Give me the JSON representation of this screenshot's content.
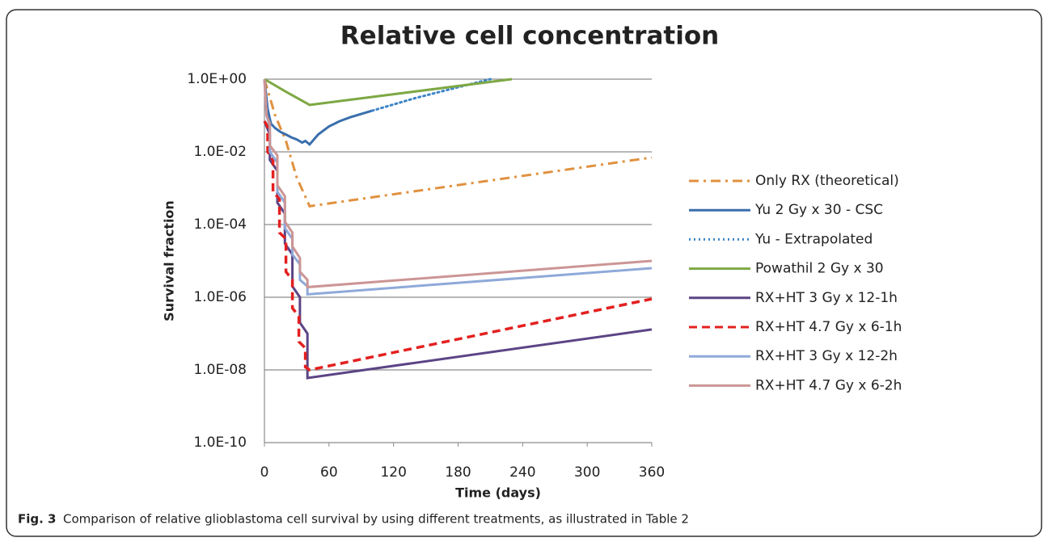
{
  "chart_data": {
    "type": "line",
    "title": "Relative cell concentration",
    "xlabel": "Time (days)",
    "ylabel": "Survival fraction",
    "yscale": "log",
    "grid": true,
    "legend": "right",
    "xlim": [
      0,
      360
    ],
    "xticks": [
      0,
      60,
      120,
      180,
      240,
      300,
      360
    ],
    "ylim": [
      1e-10,
      1
    ],
    "yticks": [
      {
        "value": 1e-10,
        "label": "1.0E-10"
      },
      {
        "value": 1e-08,
        "label": "1.0E-08"
      },
      {
        "value": 1e-06,
        "label": "1.0E-06"
      },
      {
        "value": 0.0001,
        "label": "1.0E-04"
      },
      {
        "value": 0.01,
        "label": "1.0E-02"
      },
      {
        "value": 1,
        "label": "1.0E+00"
      }
    ],
    "series": [
      {
        "name": "Only RX (theoretical)",
        "color": "#e0913f",
        "style": "dashdot",
        "x": [
          0,
          10,
          20,
          30,
          42,
          360
        ],
        "values": [
          1,
          0.1,
          0.02,
          0.002,
          0.00032,
          0.007
        ]
      },
      {
        "name": "Yu 2 Gy x 30 - CSC",
        "color": "#3a6fad",
        "style": "solid",
        "x": [
          0,
          3,
          6,
          10,
          15,
          20,
          25,
          30,
          35,
          38,
          42,
          50,
          60,
          70,
          80,
          90,
          100
        ],
        "values": [
          1,
          0.15,
          0.06,
          0.045,
          0.035,
          0.03,
          0.025,
          0.022,
          0.018,
          0.02,
          0.016,
          0.03,
          0.05,
          0.07,
          0.09,
          0.11,
          0.135
        ]
      },
      {
        "name": "Yu - Extrapolated",
        "color": "#3d85c6",
        "style": "dotted",
        "x": [
          100,
          140,
          180,
          210
        ],
        "values": [
          0.135,
          0.3,
          0.6,
          1
        ]
      },
      {
        "name": "Powathil 2 Gy x 30",
        "color": "#7ea844",
        "style": "solid",
        "x": [
          0,
          20,
          42,
          230
        ],
        "values": [
          1,
          0.45,
          0.195,
          1
        ]
      },
      {
        "name": "RX+HT 3 Gy x 12-1h",
        "color": "#5c4486",
        "style": "solid",
        "x": [
          0,
          5,
          5,
          12,
          12,
          19,
          19,
          26,
          26,
          33,
          33,
          40,
          40,
          360
        ],
        "values": [
          0.07,
          0.03,
          0.006,
          0.003,
          0.0004,
          0.0002,
          3e-05,
          1.5e-05,
          2e-06,
          1e-06,
          2e-07,
          1e-07,
          6e-09,
          1.3e-07
        ]
      },
      {
        "name": "RX+HT 4.7 Gy x 6-1h",
        "color": "#e3201f",
        "style": "dashed",
        "x": [
          0,
          3,
          3,
          8,
          8,
          14,
          14,
          20,
          20,
          26,
          26,
          32,
          32,
          38,
          38,
          42,
          360
        ],
        "values": [
          0.07,
          0.05,
          0.01,
          0.006,
          0.0008,
          0.0005,
          6e-05,
          4e-05,
          5e-06,
          3e-06,
          5e-07,
          3e-07,
          6e-08,
          4e-08,
          1.2e-08,
          1e-08,
          9e-07
        ]
      },
      {
        "name": "RX+HT 3 Gy x 12-2h",
        "color": "#8fa9d9",
        "style": "solid",
        "x": [
          0,
          2,
          5,
          5,
          12,
          12,
          19,
          19,
          26,
          26,
          33,
          33,
          40,
          40,
          360
        ],
        "values": [
          1,
          0.1,
          0.05,
          0.01,
          0.005,
          0.0008,
          0.0004,
          8e-05,
          4e-05,
          1.5e-05,
          8e-06,
          3e-06,
          2e-06,
          1.2e-06,
          6.3e-06
        ]
      },
      {
        "name": "RX+HT 4.7 Gy x 6-2h",
        "color": "#cc9595",
        "style": "solid",
        "x": [
          0,
          2,
          5,
          5,
          12,
          12,
          19,
          19,
          26,
          26,
          33,
          33,
          40,
          40,
          360
        ],
        "values": [
          1,
          0.1,
          0.06,
          0.015,
          0.008,
          0.0012,
          0.0006,
          0.00012,
          6e-05,
          2.5e-05,
          1.2e-05,
          5e-06,
          3e-06,
          1.9e-06,
          1e-05
        ]
      }
    ],
    "caption_label": "Fig. 3",
    "caption": "Comparison of relative glioblastoma cell survival by using different treatments, as illustrated in Table 2"
  }
}
